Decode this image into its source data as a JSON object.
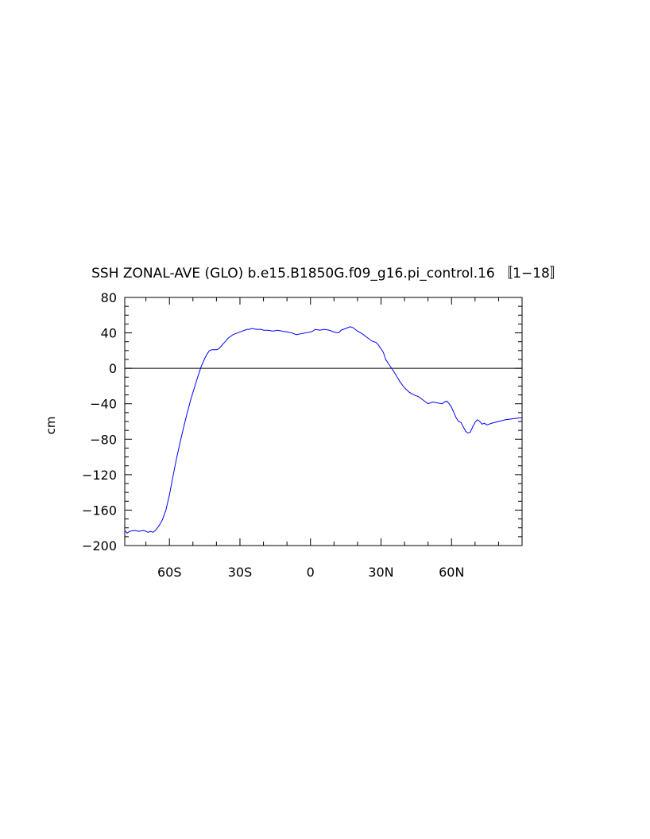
{
  "chart_data": {
    "type": "line",
    "title": "SSH ZONAL-AVE (GLO) b.e15.B1850G.f09_g16.pi_control.16 〚1−18〛",
    "xlabel": "",
    "ylabel": "cm",
    "xlim": [
      -79,
      90
    ],
    "ylim": [
      -200,
      80
    ],
    "x_ticks": [
      {
        "value": -60,
        "label": "60S"
      },
      {
        "value": -30,
        "label": "30S"
      },
      {
        "value": 0,
        "label": "0"
      },
      {
        "value": 30,
        "label": "30N"
      },
      {
        "value": 60,
        "label": "60N"
      }
    ],
    "y_ticks": [
      {
        "value": 80,
        "label": "80"
      },
      {
        "value": 40,
        "label": "40"
      },
      {
        "value": 0,
        "label": "0"
      },
      {
        "value": -40,
        "label": "−40"
      },
      {
        "value": -80,
        "label": "−80"
      },
      {
        "value": -120,
        "label": "−120"
      },
      {
        "value": -160,
        "label": "−160"
      },
      {
        "value": -200,
        "label": "−200"
      }
    ],
    "reference_line": {
      "y": 0,
      "color": "#000000"
    },
    "grid": false,
    "series": [
      {
        "color": "#0000ff",
        "x": [
          -79,
          -78,
          -77,
          -75,
          -73,
          -71,
          -69,
          -68,
          -67,
          -66,
          -64.5,
          -63,
          -61.5,
          -60,
          -58.5,
          -57,
          -55.5,
          -54,
          -52.5,
          -51,
          -49.5,
          -48,
          -46.5,
          -45,
          -44,
          -43,
          -42,
          -41,
          -40,
          -39,
          -38,
          -37,
          -36,
          -35,
          -34,
          -33,
          -32,
          -31,
          -30,
          -29,
          -28,
          -27,
          -26,
          -25,
          -23,
          -21,
          -20,
          -18,
          -16,
          -14,
          -12,
          -10,
          -8,
          -6,
          -4,
          -2,
          0,
          1,
          2,
          4,
          6,
          8,
          10,
          12,
          13,
          14,
          16,
          17,
          18,
          19,
          20,
          22,
          24,
          26,
          28,
          29,
          30,
          31,
          32,
          34,
          36,
          38,
          40,
          42,
          44,
          46,
          48,
          49,
          50,
          52,
          54,
          56,
          57,
          58,
          59,
          60,
          61,
          62,
          63,
          64,
          65,
          66,
          67,
          68,
          69,
          70,
          71,
          72,
          73,
          74,
          75,
          77,
          80,
          83,
          86,
          89,
          90
        ],
        "y": [
          -183,
          -186,
          -184,
          -183,
          -184,
          -183,
          -185,
          -184,
          -185,
          -183,
          -178,
          -171,
          -160,
          -143,
          -122,
          -102,
          -84,
          -67,
          -51,
          -36,
          -23,
          -10,
          2,
          11,
          16,
          20,
          21,
          21,
          21,
          22,
          25,
          28,
          31,
          34,
          36,
          38,
          39,
          40,
          41,
          42,
          43,
          44,
          44,
          45,
          44,
          44,
          43,
          43,
          42,
          43,
          42,
          41,
          40,
          38,
          39,
          40,
          41,
          42,
          44,
          43,
          44,
          43,
          41,
          40,
          43,
          44,
          46,
          47,
          46,
          44,
          42,
          39,
          35,
          31,
          29,
          26,
          22,
          18,
          10,
          2,
          -6,
          -15,
          -22,
          -27,
          -30,
          -32,
          -36,
          -38,
          -40,
          -38,
          -39,
          -40,
          -38,
          -37,
          -40,
          -44,
          -50,
          -56,
          -60,
          -61,
          -66,
          -71,
          -73,
          -72,
          -66,
          -61,
          -58,
          -60,
          -63,
          -62,
          -64,
          -62,
          -60,
          -58,
          -57,
          -56,
          -56
        ]
      }
    ]
  }
}
